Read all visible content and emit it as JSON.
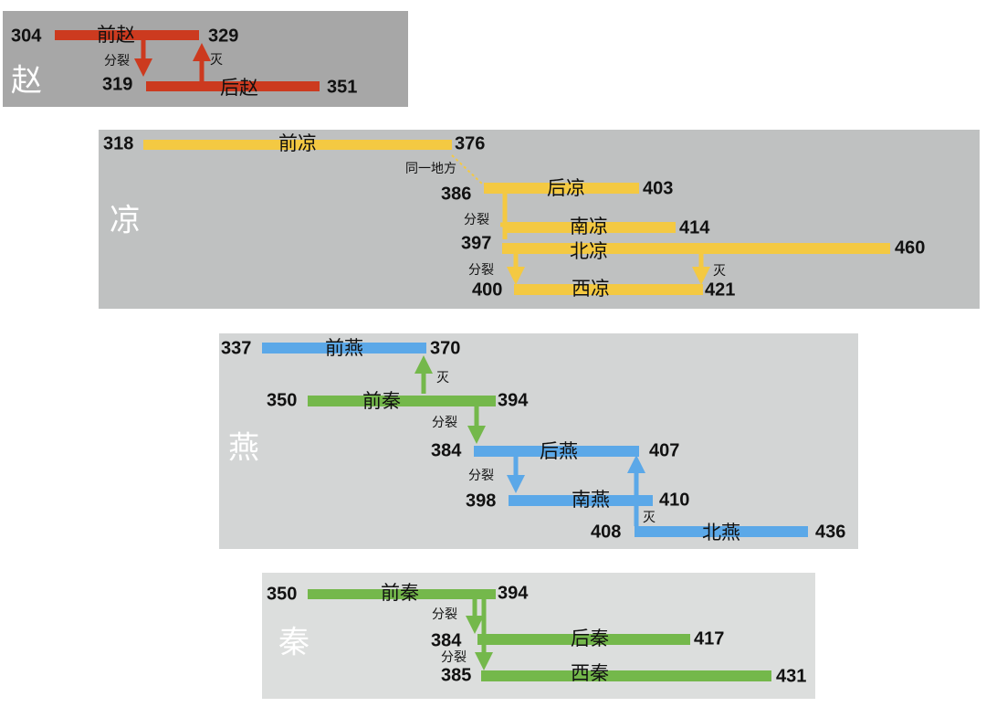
{
  "panels": [
    {
      "label": "赵",
      "bars": [
        {
          "name": "前赵",
          "start": 304,
          "end": 329
        },
        {
          "name": "后赵",
          "start": 319,
          "end": 351
        }
      ],
      "links": [
        "分裂",
        "灭"
      ]
    },
    {
      "label": "凉",
      "bars": [
        {
          "name": "前凉",
          "start": 318,
          "end": 376
        },
        {
          "name": "后凉",
          "start": 386,
          "end": 403
        },
        {
          "name": "南凉",
          "end": 414
        },
        {
          "name": "北凉",
          "start": 397,
          "end": 460
        },
        {
          "name": "西凉",
          "start": 400,
          "end": 421
        }
      ],
      "links": [
        "同一地方",
        "分裂",
        "分裂",
        "灭"
      ]
    },
    {
      "label": "燕",
      "bars": [
        {
          "name": "前燕",
          "start": 337,
          "end": 370
        },
        {
          "name": "前秦",
          "start": 350,
          "end": 394
        },
        {
          "name": "后燕",
          "start": 384,
          "end": 407
        },
        {
          "name": "南燕",
          "start": 398,
          "end": 410
        },
        {
          "name": "北燕",
          "start": 408,
          "end": 436
        }
      ],
      "links": [
        "灭",
        "分裂",
        "分裂",
        "灭"
      ]
    },
    {
      "label": "秦",
      "bars": [
        {
          "name": "前秦",
          "start": 350,
          "end": 394
        },
        {
          "name": "后秦",
          "start": 384,
          "end": 417
        },
        {
          "name": "西秦",
          "start": 385,
          "end": 431
        }
      ],
      "links": [
        "分裂",
        "分裂"
      ]
    }
  ]
}
